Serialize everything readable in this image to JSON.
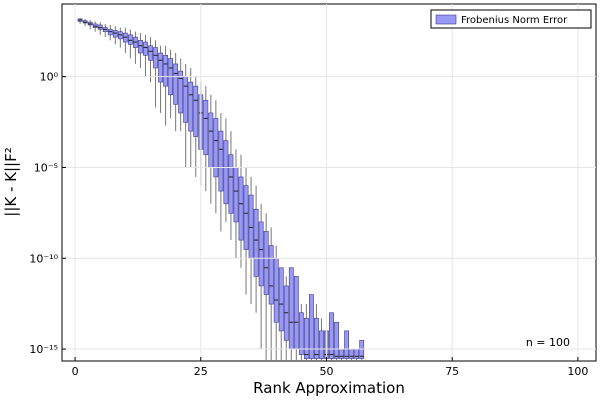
{
  "chart_data": {
    "type": "box",
    "xlabel": "Rank Approximation",
    "ylabel": "||K - K||F²",
    "annotation": "n = 100",
    "xlim": [
      -2.6,
      103.6
    ],
    "xticks": [
      0,
      25,
      50,
      75,
      100
    ],
    "ylim": [
      2.2e-16,
      10000.0
    ],
    "log_y": true,
    "yticks": [
      {
        "value": 1,
        "label": "10⁰"
      },
      {
        "value": 1e-05,
        "label": "10⁻⁵"
      },
      {
        "value": 1e-10,
        "label": "10⁻¹⁰"
      },
      {
        "value": 1e-15,
        "label": "10⁻¹⁵"
      }
    ],
    "grid": true,
    "legend": "top-right",
    "series": [
      {
        "name": "Frobenius Norm Error",
        "color": "#9999f5",
        "x": [
          1,
          2,
          3,
          4,
          5,
          6,
          7,
          8,
          9,
          10,
          11,
          12,
          13,
          14,
          15,
          16,
          17,
          18,
          19,
          20,
          21,
          22,
          23,
          24,
          25,
          26,
          27,
          28,
          29,
          30,
          31,
          32,
          33,
          34,
          35,
          36,
          37,
          38,
          39,
          40,
          41,
          42,
          43,
          44,
          45,
          46,
          47,
          48,
          49,
          50,
          51,
          52,
          53,
          54,
          55,
          56,
          57
        ],
        "whislo": [
          800.0,
          600.0,
          400.0,
          300.0,
          200.0,
          150.0,
          100.0,
          60.0,
          40.0,
          20.0,
          10.0,
          5.0,
          3.0,
          1.0,
          0.5,
          0.02,
          0.01,
          0.002,
          0.005,
          0.001,
          0.001,
          1e-05,
          1e-05,
          3e-06,
          1e-06,
          5e-07,
          1e-07,
          3e-08,
          3e-09,
          1e-08,
          1e-09,
          1e-10,
          3e-11,
          1e-12,
          3e-13,
          1e-13,
          1e-15,
          1e-16,
          1e-16,
          1e-16,
          1e-16,
          1e-16,
          1e-16,
          1e-16,
          1e-16,
          1e-16,
          1e-16,
          1e-16,
          1e-16,
          1e-16,
          1e-16,
          1e-16,
          1e-16,
          1e-16,
          1e-16,
          1e-16,
          1e-16
        ],
        "q1": [
          1100.0,
          900.0,
          700.0,
          500.0,
          400.0,
          300.0,
          200.0,
          150.0,
          120.0,
          80.0,
          60.0,
          40.0,
          20.0,
          15.0,
          8.0,
          3.0,
          0.5,
          0.3,
          0.1,
          0.03,
          0.01,
          0.003,
          0.001,
          0.0005,
          0.0001,
          5e-05,
          1e-05,
          3e-06,
          5e-07,
          1e-07,
          3e-08,
          1e-08,
          1e-09,
          3e-10,
          1e-10,
          1e-11,
          3e-12,
          1e-12,
          3e-13,
          3e-14,
          1e-14,
          3e-15,
          1e-15,
          1e-15,
          5e-16,
          3e-16,
          3e-16,
          3e-16,
          3e-16,
          3e-16,
          3e-16,
          3e-16,
          3e-16,
          3e-16,
          3e-16,
          3e-16,
          3e-16
        ],
        "median": [
          1300.0,
          1000.0,
          800.0,
          600.0,
          500.0,
          400.0,
          300.0,
          250.0,
          200.0,
          150.0,
          100.0,
          80.0,
          50.0,
          40.0,
          25.0,
          15.0,
          8.0,
          5.0,
          3.0,
          1.5,
          0.8,
          0.3,
          0.1,
          0.05,
          0.01,
          0.005,
          0.001,
          0.0003,
          0.0001,
          1e-05,
          3e-06,
          5e-07,
          1e-07,
          3e-08,
          5e-09,
          1e-09,
          3e-10,
          3e-11,
          3e-12,
          5e-13,
          3e-13,
          1e-13,
          3e-14,
          3e-14,
          1e-15,
          5e-16,
          1e-15,
          5e-16,
          1e-15,
          5e-16,
          5e-16,
          4e-16,
          4e-16,
          4e-16,
          4e-16,
          4e-16,
          4e-16
        ],
        "q3": [
          1500.0,
          1200.0,
          1000.0,
          800.0,
          700.0,
          500.0,
          400.0,
          350.0,
          300.0,
          250.0,
          200.0,
          150.0,
          100.0,
          80.0,
          50.0,
          40.0,
          20.0,
          15.0,
          10.0,
          5.0,
          2.0,
          1.0,
          0.5,
          0.3,
          0.1,
          0.05,
          0.01,
          0.005,
          0.001,
          0.0003,
          5e-05,
          1e-05,
          3e-06,
          1e-06,
          3e-07,
          5e-08,
          1e-08,
          3e-09,
          5e-10,
          1e-10,
          3e-11,
          3e-12,
          3e-11,
          1e-11,
          1e-13,
          5e-14,
          1e-12,
          5e-14,
          1e-14,
          1e-14,
          1e-13,
          3e-14,
          1e-15,
          1e-14,
          1e-15,
          1e-15,
          3e-15
        ],
        "whishi": [
          1700.0,
          1500.0,
          1300.0,
          1100.0,
          1000.0,
          800.0,
          700.0,
          600.0,
          500.0,
          500.0,
          400.0,
          300.0,
          250.0,
          200.0,
          150.0,
          100.0,
          50.0,
          50.0,
          30.0,
          20.0,
          10.0,
          5.0,
          3.0,
          1.0,
          0.5,
          0.3,
          0.1,
          0.05,
          0.01,
          0.005,
          0.001,
          0.0001,
          5e-05,
          1e-05,
          3e-06,
          1e-06,
          1e-07,
          3e-08,
          5e-09,
          5e-10,
          3e-11,
          1e-11,
          3e-11,
          1e-11,
          3e-13,
          3e-13,
          1e-12,
          3e-13,
          5e-14,
          5e-14,
          1e-13,
          3e-14,
          1e-15,
          1e-14,
          1e-15,
          1e-15,
          3e-15
        ]
      }
    ]
  }
}
